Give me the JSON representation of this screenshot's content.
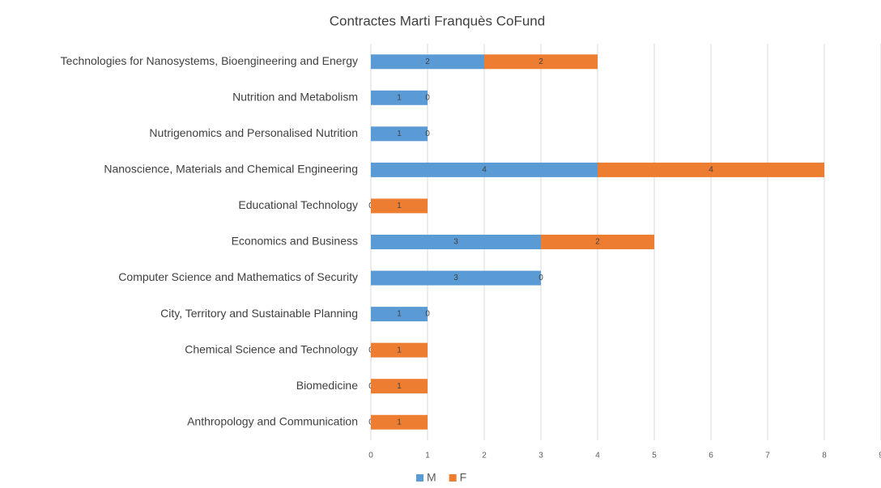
{
  "chart_data": {
    "type": "stacked_barh",
    "title": "Contractes Marti Franquès CoFund",
    "categories": [
      "Technologies for Nanosystems, Bioengineering and Energy",
      "Nutrition and Metabolism",
      "Nutrigenomics and Personalised Nutrition",
      "Nanoscience, Materials and Chemical Engineering",
      "Educational Technology",
      "Economics and Business",
      "Computer Science and Mathematics of Security",
      "City, Territory and Sustainable Planning",
      "Chemical Science and Technology",
      "Biomedicine",
      "Anthropology and Communication"
    ],
    "series": [
      {
        "name": "M",
        "color": "#5b9bd5",
        "values": [
          2,
          1,
          1,
          4,
          0,
          3,
          3,
          1,
          0,
          0,
          0
        ]
      },
      {
        "name": "F",
        "color": "#ed7d31",
        "values": [
          2,
          0,
          0,
          4,
          1,
          2,
          0,
          0,
          1,
          1,
          1
        ]
      }
    ],
    "xlim": [
      0,
      9
    ],
    "xticks": [
      0,
      1,
      2,
      3,
      4,
      5,
      6,
      7,
      8,
      9
    ],
    "grid": true,
    "legend": "bottom"
  }
}
